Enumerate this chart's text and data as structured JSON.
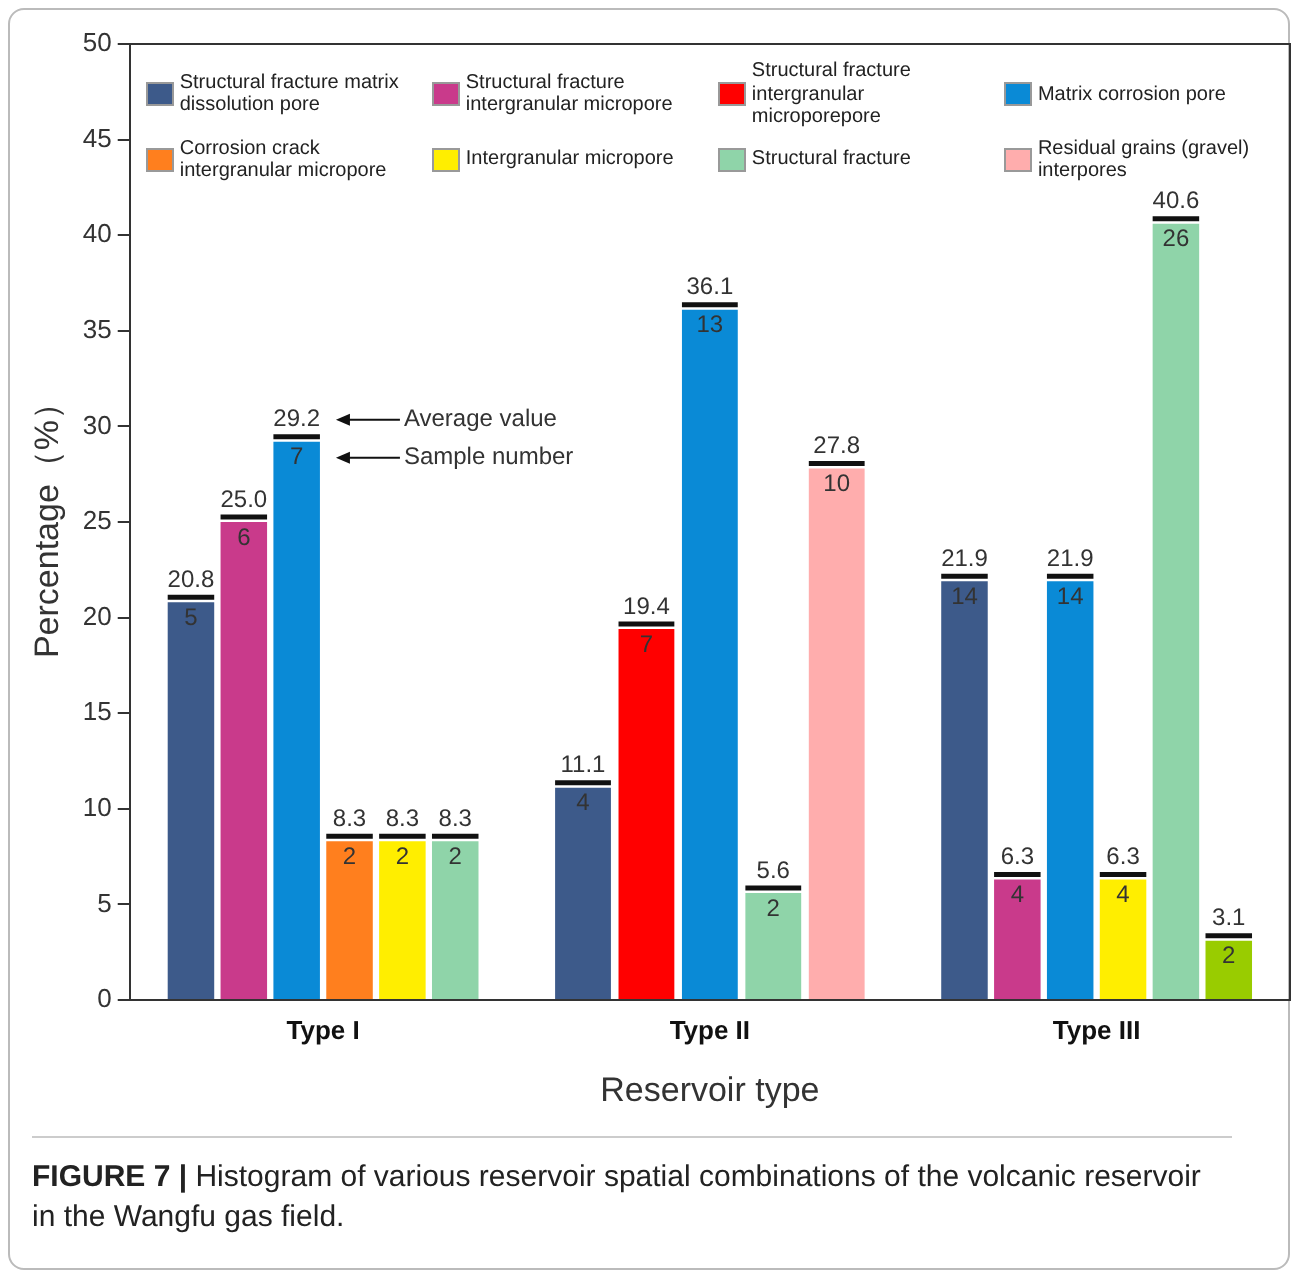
{
  "chart_data": {
    "type": "bar",
    "xlabel": "Reservoir type",
    "ylabel": "Percentage（%）",
    "categories": [
      "Type I",
      "Type II",
      "Type III"
    ],
    "ylim": [
      0,
      50
    ],
    "yticks": [
      0,
      5,
      10,
      15,
      20,
      25,
      30,
      35,
      40,
      45,
      50
    ],
    "grid": false,
    "legend": "top",
    "series": [
      {
        "name": "Structural fracture matrix dissolution pore",
        "color": "#3d5a8a",
        "values": [
          20.8,
          11.1,
          21.9
        ],
        "value_labels": [
          "20.8",
          "11.1",
          "21.9"
        ]
      },
      {
        "name": "Structural fracture intergranular micropore",
        "color": "#c93a8b",
        "values": [
          25.0,
          null,
          6.3
        ],
        "value_labels": [
          "25.0",
          null,
          "6.3"
        ]
      },
      {
        "name": "Structural fracture intergranular microporepore",
        "color": "#ff0000",
        "values": [
          null,
          19.4,
          null
        ],
        "value_labels": [
          null,
          "19.4",
          null
        ]
      },
      {
        "name": "Matrix corrosion pore",
        "color": "#0a8ad6",
        "values": [
          29.2,
          36.1,
          21.9
        ],
        "value_labels": [
          "29.2",
          "36.1",
          "21.9"
        ]
      },
      {
        "name": "Corrosion crack intergranular micropore",
        "color": "#ff7f1e",
        "values": [
          8.3,
          null,
          null
        ],
        "value_labels": [
          "8.3",
          null,
          null
        ]
      },
      {
        "name": "Intergranular micropore",
        "color": "#ffee00",
        "values": [
          8.3,
          null,
          6.3
        ],
        "value_labels": [
          "8.3",
          null,
          "6.3"
        ]
      },
      {
        "name": "Structural fracture",
        "color": "#8fd4a9",
        "values": [
          8.3,
          5.6,
          40.6
        ],
        "value_labels": [
          "8.3",
          "5.6",
          "40.6"
        ]
      },
      {
        "name": "Residual grains (gravel) interpores",
        "color": "#ffadad",
        "values": [
          null,
          27.8,
          null
        ],
        "value_labels": [
          null,
          "27.8",
          null
        ]
      },
      {
        "color": "#99cc00",
        "values": [
          null,
          null,
          3.1
        ],
        "value_labels": [
          null,
          null,
          "3.1"
        ]
      }
    ],
    "annotations": [
      "Average value",
      "Sample number",
      "FIGURE 7 |",
      "Histogram of various reservoir spatial combinations of the volcanic reservoir in the Wangfu gas field.",
      {
        "text": "5",
        "y": 20.8
      },
      {
        "text": "6",
        "y": 25.0
      },
      {
        "text": "7",
        "y": 29.2
      },
      {
        "text": "2",
        "y": 8.3
      },
      {
        "text": "2",
        "y": 8.3
      },
      {
        "text": "2",
        "y": 8.3
      },
      {
        "text": "4",
        "y": 11.1
      },
      {
        "text": "7",
        "y": 19.4
      },
      {
        "text": "13",
        "y": 36.1
      },
      {
        "text": "2",
        "y": 5.6
      },
      {
        "text": "10",
        "y": 27.8
      },
      {
        "text": "14",
        "y": 21.9
      },
      {
        "text": "4",
        "y": 6.3
      },
      {
        "text": "14",
        "y": 21.9
      },
      {
        "text": "4",
        "y": 6.3
      },
      {
        "text": "26",
        "y": 40.6
      },
      {
        "text": "2",
        "y": 3.1
      }
    ]
  }
}
